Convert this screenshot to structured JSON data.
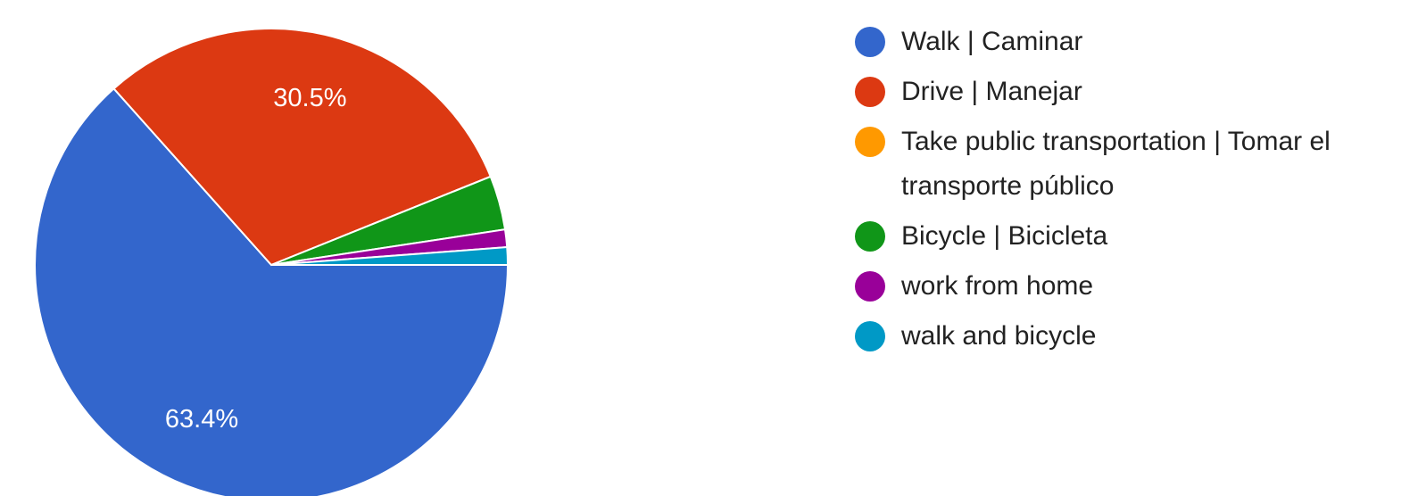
{
  "chart_data": {
    "type": "pie",
    "categories": [
      "Walk | Caminar",
      "Drive | Manejar",
      "Take public transportation | Tomar el transporte público",
      "Bicycle | Bicicleta",
      "work from home",
      "walk and bicycle"
    ],
    "values": [
      63.4,
      30.5,
      0,
      3.7,
      1.2,
      1.2
    ],
    "value_labels": [
      "63.4%",
      "30.5%",
      null,
      null,
      null,
      null
    ],
    "colors": [
      "#3366cc",
      "#dc3912",
      "#ff9900",
      "#109618",
      "#990099",
      "#0099c6"
    ]
  }
}
